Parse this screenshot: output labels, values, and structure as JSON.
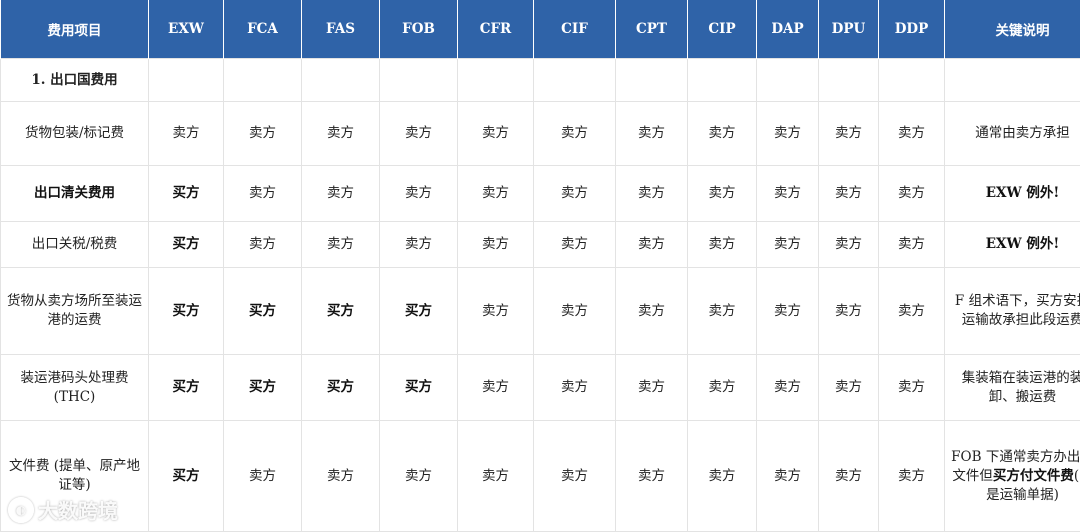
{
  "header": {
    "item": "费用项目",
    "terms": [
      "EXW",
      "FCA",
      "FAS",
      "FOB",
      "CFR",
      "CIF",
      "CPT",
      "CIP",
      "DAP",
      "DPU",
      "DDP"
    ],
    "note": "关键说明"
  },
  "section": {
    "title": "1. 出口国费用"
  },
  "rows": [
    {
      "item": "货物包装/标记费",
      "values": [
        "卖方",
        "卖方",
        "卖方",
        "卖方",
        "卖方",
        "卖方",
        "卖方",
        "卖方",
        "卖方",
        "卖方",
        "卖方"
      ],
      "note": "通常由卖方承担"
    },
    {
      "item": "出口清关费用",
      "values": [
        "买方",
        "卖方",
        "卖方",
        "卖方",
        "卖方",
        "卖方",
        "卖方",
        "卖方",
        "卖方",
        "卖方",
        "卖方"
      ],
      "note": "EXW 例外!"
    },
    {
      "item": "出口关税/税费",
      "values": [
        "买方",
        "卖方",
        "卖方",
        "卖方",
        "卖方",
        "卖方",
        "卖方",
        "卖方",
        "卖方",
        "卖方",
        "卖方"
      ],
      "note": "EXW 例外!"
    },
    {
      "item": "货物从卖方场所至装运港的运费",
      "values": [
        "买方",
        "买方",
        "买方",
        "买方",
        "卖方",
        "卖方",
        "卖方",
        "卖方",
        "卖方",
        "卖方",
        "卖方"
      ],
      "note": "F 组术语下，买方安排运输故承担此段运费"
    },
    {
      "item": "装运港码头处理费 (THC)",
      "values": [
        "买方",
        "买方",
        "买方",
        "买方",
        "卖方",
        "卖方",
        "卖方",
        "卖方",
        "卖方",
        "卖方",
        "卖方"
      ],
      "note": "集装箱在装运港的装卸、搬运费"
    },
    {
      "item": "文件费 (提单、原产地证等)",
      "values": [
        "买方",
        "卖方",
        "卖方",
        "卖方",
        "卖方",
        "卖方",
        "卖方",
        "卖方",
        "卖方",
        "卖方",
        "卖方"
      ],
      "note_parts": [
        "FOB 下通常卖方办出口文件但",
        "买方付文件费",
        "(因是运输单据)"
      ]
    }
  ],
  "watermark": {
    "text": "大数跨境",
    "icon": "brand-logo-icon"
  }
}
